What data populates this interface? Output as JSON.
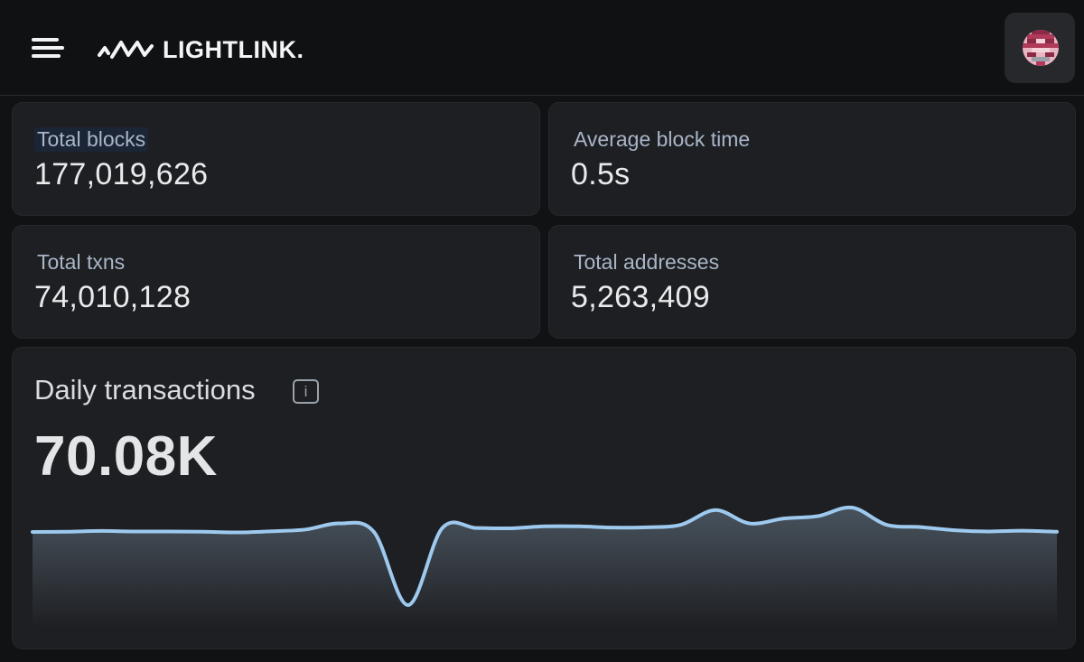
{
  "header": {
    "brand": "LIGHTLINK.",
    "menu_icon": "hamburger-menu-icon",
    "logo_icon": "lightlink-logo-icon",
    "avatar_icon": "user-avatar-icon"
  },
  "stats": [
    {
      "label": "Total blocks",
      "value": "177,019,626"
    },
    {
      "label": "Average block time",
      "value": "0.5s"
    },
    {
      "label": "Total txns",
      "value": "74,010,128"
    },
    {
      "label": "Total addresses",
      "value": "5,263,409"
    }
  ],
  "daily": {
    "title": "Daily transactions",
    "info_icon": "info-icon",
    "info_glyph": "i",
    "value": "70.08K"
  },
  "colors": {
    "line": "#9ec9ee",
    "background": "#111214",
    "card": "#1e1f22"
  },
  "chart_data": {
    "type": "area",
    "title": "Daily transactions",
    "xlabel": "",
    "ylabel": "",
    "grid": false,
    "legend": "none",
    "x": [
      0,
      1,
      2,
      3,
      4,
      5,
      6,
      7,
      8,
      9,
      10,
      11,
      12,
      13,
      14,
      15,
      16,
      17,
      18,
      19,
      20,
      21,
      22,
      23,
      24,
      25,
      26,
      27,
      28,
      29,
      30
    ],
    "values": [
      70.0,
      70.1,
      70.4,
      70.2,
      70.2,
      70.1,
      69.8,
      70.3,
      71.0,
      73.5,
      70.0,
      40.0,
      71.6,
      71.6,
      71.5,
      72.3,
      72.3,
      71.8,
      71.9,
      73.0,
      79.0,
      73.5,
      75.5,
      76.5,
      80.0,
      73.0,
      72.0,
      70.7,
      70.2,
      70.5,
      70.08
    ],
    "ylim": [
      30,
      90
    ]
  }
}
